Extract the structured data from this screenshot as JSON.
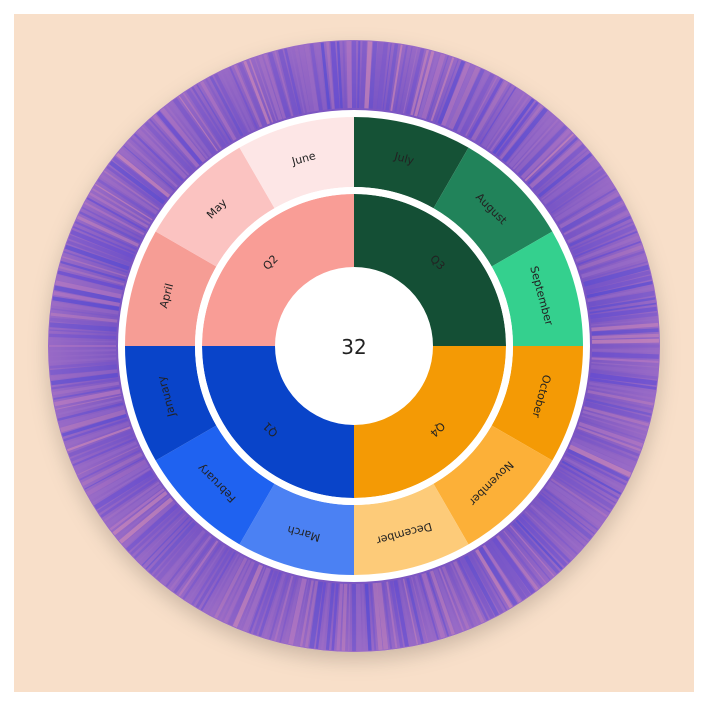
{
  "chart_data": {
    "type": "sunburst",
    "center_value": "32",
    "colors": {
      "background": "#f8dfc9",
      "outer_ring": "#8a5fc4",
      "separator": "#ffffff"
    },
    "quarters": [
      {
        "name": "Q1",
        "color": "#0944c9",
        "months": [
          {
            "name": "January",
            "color": "#0944c9"
          },
          {
            "name": "February",
            "color": "#1f62f0"
          },
          {
            "name": "March",
            "color": "#4b81f3"
          }
        ]
      },
      {
        "name": "Q2",
        "color": "#f99d96",
        "months": [
          {
            "name": "April",
            "color": "#f69d95"
          },
          {
            "name": "May",
            "color": "#fbc3c1"
          },
          {
            "name": "June",
            "color": "#fde6e6"
          }
        ]
      },
      {
        "name": "Q3",
        "color": "#144f35",
        "months": [
          {
            "name": "July",
            "color": "#155236"
          },
          {
            "name": "August",
            "color": "#21835a"
          },
          {
            "name": "September",
            "color": "#34d08e"
          }
        ]
      },
      {
        "name": "Q4",
        "color": "#f49a05",
        "months": [
          {
            "name": "October",
            "color": "#f49a05"
          },
          {
            "name": "November",
            "color": "#fcb038"
          },
          {
            "name": "December",
            "color": "#fdcb79"
          }
        ]
      }
    ]
  }
}
